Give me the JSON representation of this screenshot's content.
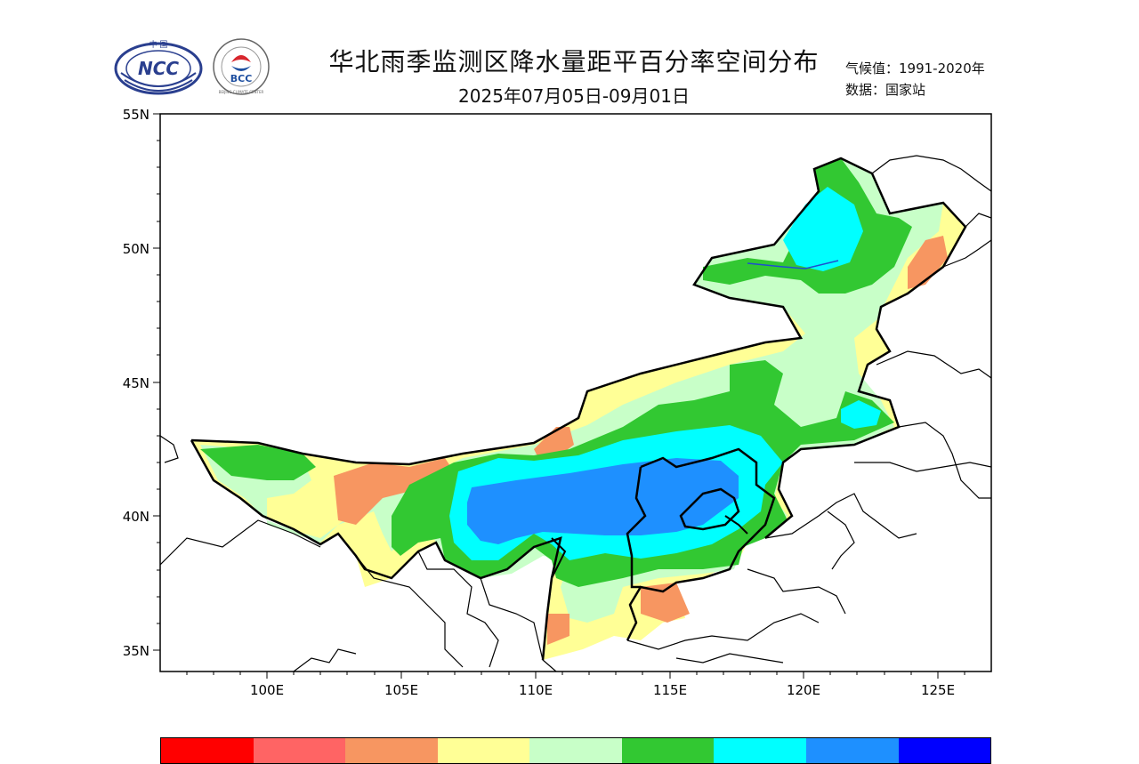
{
  "header": {
    "title": "华北雨季监测区降水量距平百分率空间分布",
    "subtitle": "2025年07月05日-09月01日",
    "climate_line": "气候值：1991-2020年",
    "data_line": "数据：国家站"
  },
  "logos": {
    "ncc": {
      "top_text": "中 国",
      "main_text": "NCC"
    },
    "bcc": {
      "main_text": "BCC",
      "ring_text": "BEIJING CLIMATE CENTER"
    }
  },
  "axes": {
    "lat_labels": [
      "55N",
      "50N",
      "45N",
      "40N",
      "35N"
    ],
    "lon_labels": [
      "100E",
      "105E",
      "110E",
      "115E",
      "120E",
      "125E"
    ]
  },
  "legend": {
    "colors": [
      "#ff0000",
      "#ff6464",
      "#f79661",
      "#ffff96",
      "#c8ffc8",
      "#32c832",
      "#00ffff",
      "#1e90ff",
      "#0000ff"
    ]
  }
}
